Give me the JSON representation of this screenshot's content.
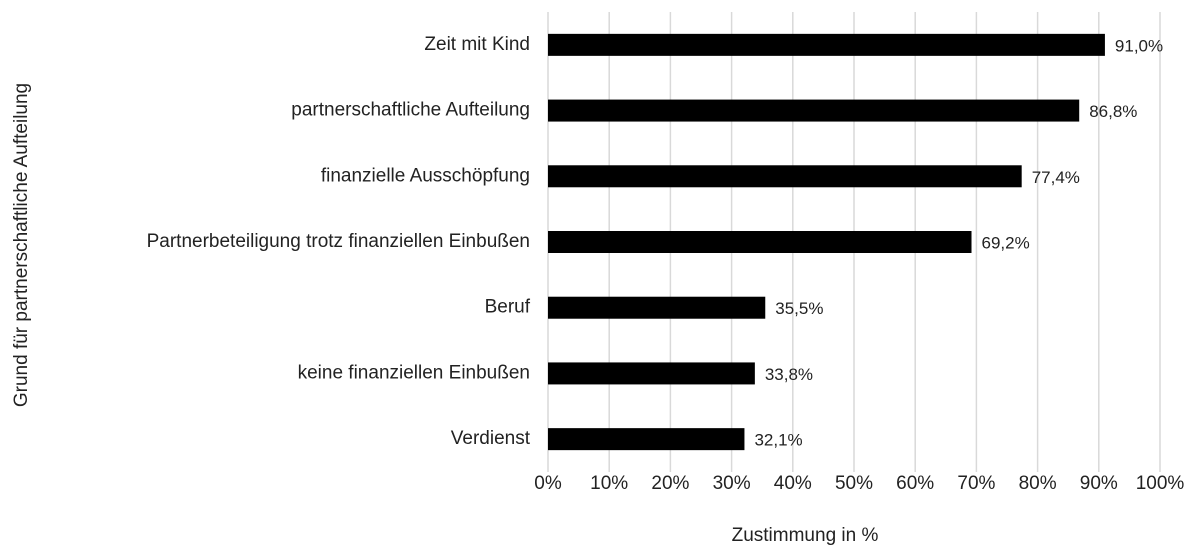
{
  "chart_data": {
    "type": "barh",
    "categories": [
      "Zeit mit Kind",
      "partnerschaftliche Aufteilung",
      "finanzielle Ausschöpfung",
      "Partnerbeteiligung trotz finanziellen Einbußen",
      "Beruf",
      "keine finanziellen Einbußen",
      "Verdienst"
    ],
    "values": [
      91.0,
      86.8,
      77.4,
      69.2,
      35.5,
      33.8,
      32.1
    ],
    "value_labels": [
      "91,0%",
      "86,8%",
      "77,4%",
      "69,2%",
      "35,5%",
      "33,8%",
      "32,1%"
    ],
    "color": "#000000",
    "xlabel": "Zustimmung in %",
    "ylabel": "Grund für partnerschaftliche Aufteilung",
    "xlim": [
      0,
      100
    ],
    "xticks": [
      {
        "value": 0,
        "label": "0%"
      },
      {
        "value": 10,
        "label": "10%"
      },
      {
        "value": 20,
        "label": "20%"
      },
      {
        "value": 30,
        "label": "30%"
      },
      {
        "value": 40,
        "label": "40%"
      },
      {
        "value": 50,
        "label": "50%"
      },
      {
        "value": 60,
        "label": "60%"
      },
      {
        "value": 70,
        "label": "70%"
      },
      {
        "value": 80,
        "label": "80%"
      },
      {
        "value": 90,
        "label": "90%"
      },
      {
        "value": 100,
        "label": "100%"
      }
    ],
    "grid": true
  }
}
